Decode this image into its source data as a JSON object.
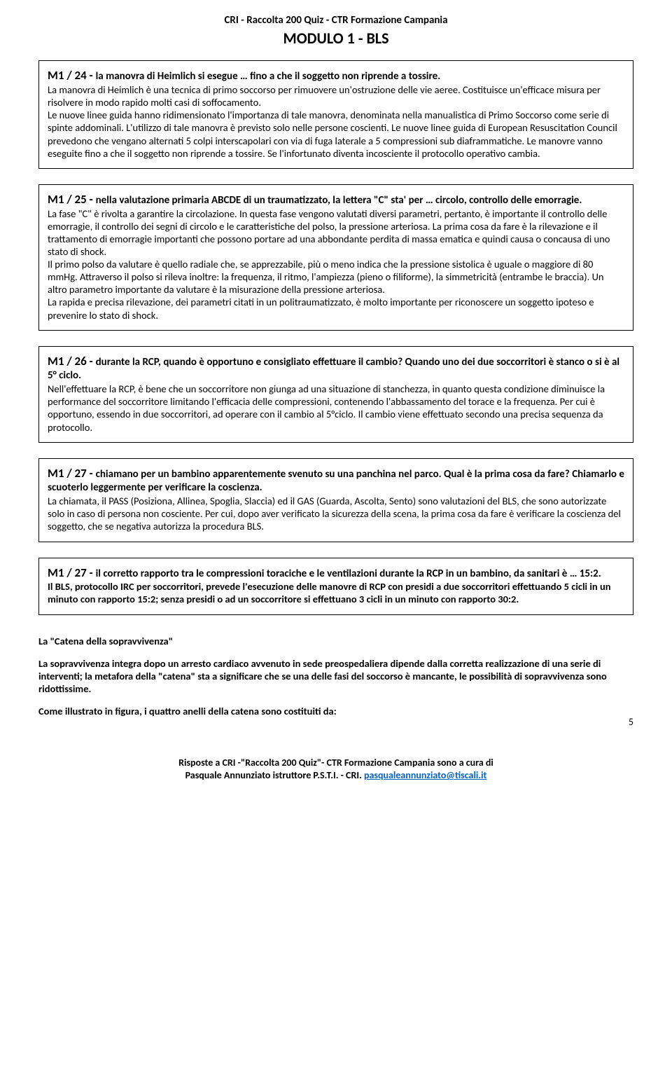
{
  "header": {
    "line1": "CRI - Raccolta 200 Quiz - CTR Formazione Campania",
    "line2": "MODULO 1 - BLS"
  },
  "questions": [
    {
      "num": "M1 / 24 -  ",
      "title": "la manovra di Heimlich si esegue … fino a che il soggetto non riprende a tossire.",
      "body": "La manovra di Heimlich è una tecnica di primo soccorso per rimuovere un'ostruzione delle vie aeree. Costituisce un'efficace misura per risolvere in modo rapido molti casi di soffocamento.\nLe nuove linee guida hanno ridimensionato l'importanza di tale manovra, denominata nella manualistica di Primo Soccorso come serie di spinte addominali. L'utilizzo di tale manovra è previsto solo nelle persone coscienti. Le nuove linee guida di European Resuscitation Council prevedono che vengano alternati 5 colpi interscapolari con via di fuga laterale a 5 compressioni sub diaframmatiche. Le manovre vanno eseguite fino a che il soggetto non riprende a tossire. Se l'infortunato diventa incosciente il protocollo operativo cambia."
    },
    {
      "num": "M1 / 25 -  ",
      "title": "nella valutazione primaria ABCDE di un traumatizzato, la lettera \"C\" sta' per … circolo, controllo delle emorragie.",
      "body": "La fase \"C\" è rivolta a garantire la circolazione. In questa fase vengono valutati diversi parametri, pertanto, è importante il controllo delle emorragie, il controllo dei segni di circolo e le caratteristiche del polso, la pressione arteriosa. La prima cosa da fare è la rilevazione e il trattamento di emorragie importanti che possono portare ad una abbondante perdita di massa ematica e quindi causa o concausa di uno stato di shock.\nIl primo polso da valutare è quello radiale che, se apprezzabile, più o meno indica che la pressione sistolica è uguale o maggiore di 80 mmHg. Attraverso il polso si rileva inoltre: la frequenza, il ritmo, l'ampiezza (pieno o filiforme), la simmetricità (entrambe le braccia). Un altro parametro importante da valutare è la misurazione della pressione arteriosa.\nLa rapida e precisa rilevazione, dei parametri citati in un politraumatizzato, è molto importante per riconoscere un soggetto ipoteso e prevenire lo stato di shock."
    },
    {
      "num": "M1 / 26 -  ",
      "title": "durante la RCP, quando è opportuno e consigliato effettuare il cambio? Quando  uno dei due soccorritori è stanco o si è al 5° ciclo.",
      "body": "Nell'effettuare la RCP, è bene che un soccorritore non giunga ad una situazione di stanchezza, in quanto questa condizione diminuisce la performance del soccorritore limitando l'efficacia delle compressioni, contenendo l'abbassamento del torace e la frequenza. Per cui è opportuno, essendo in due soccorritori, ad operare con il cambio al 5°ciclo. Il cambio viene effettuato secondo una precisa sequenza da protocollo."
    },
    {
      "num": "M1 / 27 -  ",
      "title": "chiamano per un bambino apparentemente svenuto su una panchina nel parco. Qual è la prima cosa da fare?  Chiamarlo e scuoterlo leggermente per verificare la coscienza.",
      "body": "La chiamata, il PASS (Posiziona, Allinea, Spoglia, Slaccia) ed il GAS (Guarda, Ascolta, Sento) sono valutazioni del BLS, che sono autorizzate solo in caso di persona non cosciente. Per cui, dopo aver verificato la sicurezza della scena, la prima cosa da fare è verificare la coscienza del soggetto, che se negativa autorizza la procedura BLS."
    },
    {
      "num": "M1 / 27 -  ",
      "title": "il corretto rapporto tra le compressioni toraciche e le ventilazioni durante la RCP in un bambino, da sanitari è … 15:2.",
      "body_bold": "Il BLS, protocollo IRC per soccorritori, prevede l'esecuzione delle manovre di RCP con presidi a due soccorritori effettuando 5 cicli in un minuto con rapporto 15:2; senza presidi o ad un soccorritore si effettuano 3 cicli in un minuto con rapporto 30:2."
    }
  ],
  "standalone": {
    "title": "La \"Catena della sopravvivenza\"",
    "p1": "La sopravvivenza integra dopo un arresto cardiaco avvenuto in sede preospedaliera dipende dalla corretta realizzazione di una serie di interventi; la metafora della \"catena\" sta a significare che se una delle fasi del soccorso è mancante, le possibilità di sopravvivenza sono ridottissime.",
    "p2": "Come illustrato in figura, i quattro anelli della catena sono costituiti da:"
  },
  "footer": {
    "line1": "Risposte a CRI -\"Raccolta 200 Quiz\"- CTR Formazione Campania sono a cura di",
    "line2_pre": "Pasquale Annunziato istruttore P.S.T.I. - CRI. ",
    "email": "pasqualeannunziato@tiscali.it"
  },
  "page_number": "5"
}
